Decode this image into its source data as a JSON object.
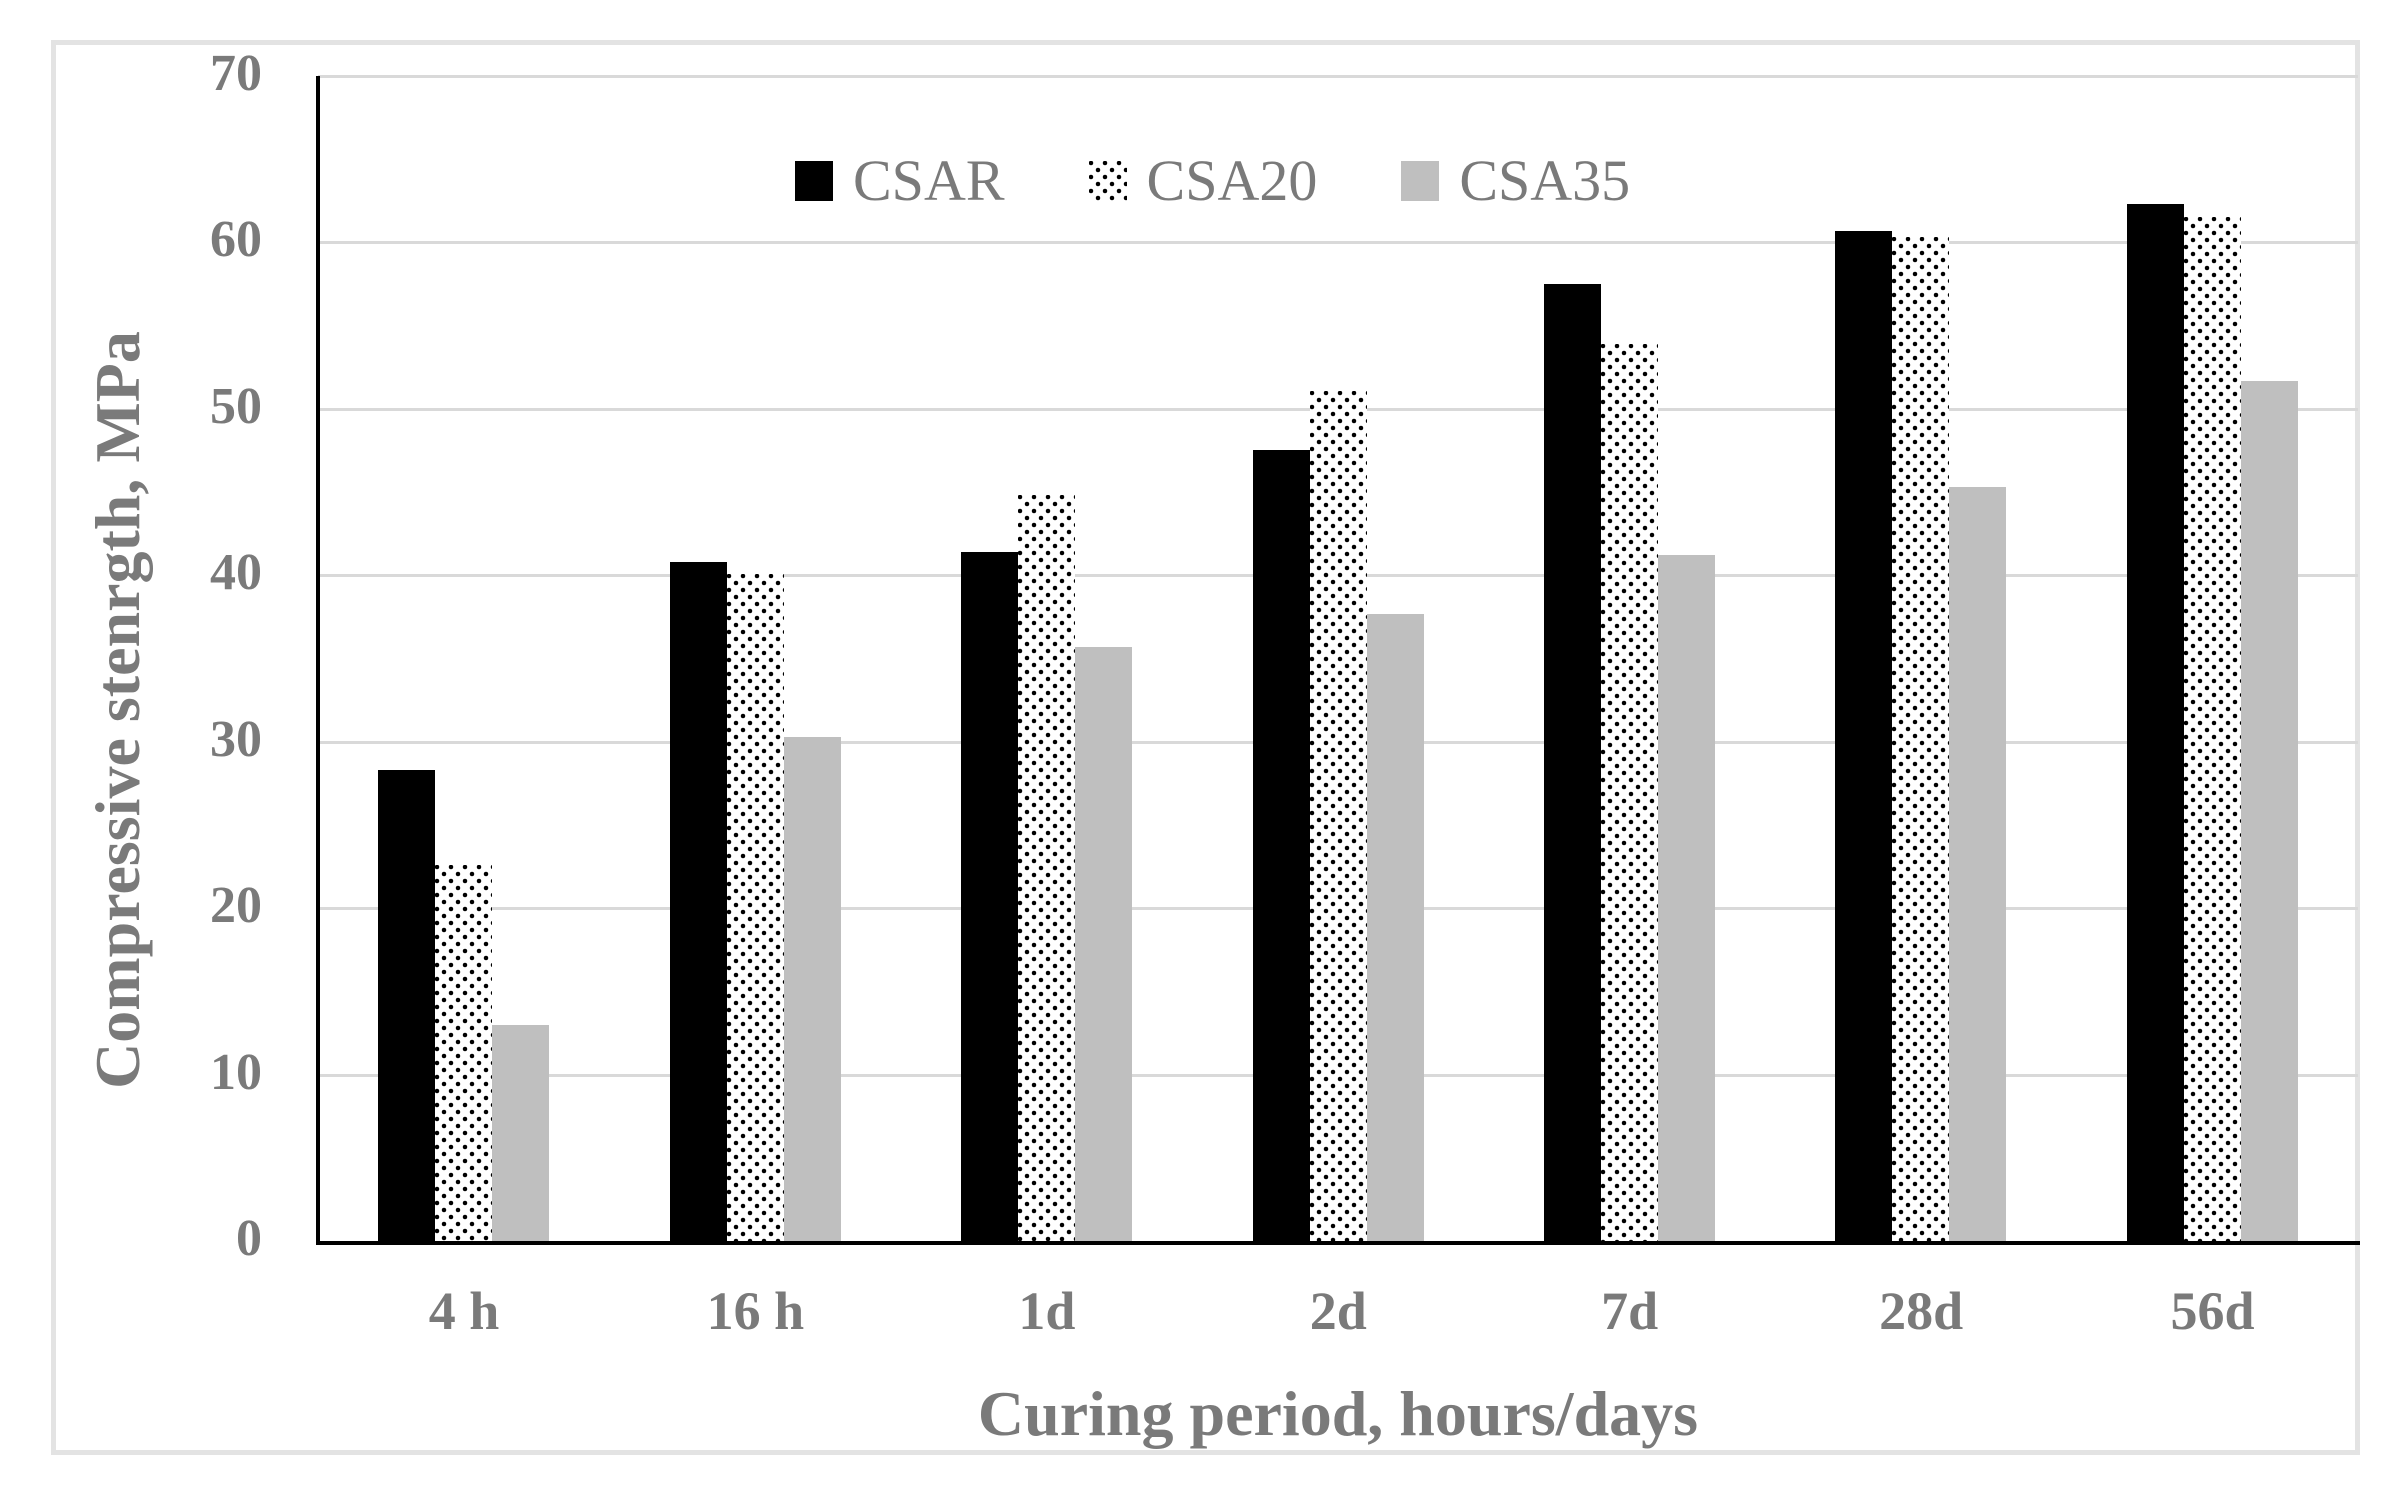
{
  "figure": {
    "background": "#ffffff",
    "frame_color": "#e3e3e3",
    "axis_color": "#000000",
    "gridline_color": "#d9d9d9",
    "text_color": "#7a7a7a"
  },
  "chart_data": {
    "type": "bar",
    "title": "",
    "xlabel": "Curing period, hours/days",
    "ylabel": "Compressive stenrgth, MPa",
    "categories": [
      "4 h",
      "16 h",
      "1d",
      "2d",
      "7d",
      "28d",
      "56d"
    ],
    "series": [
      {
        "name": "CSAR",
        "fill": "solid-black",
        "color": "#000000",
        "values": [
          28.3,
          40.8,
          41.4,
          47.5,
          57.5,
          60.7,
          62.3
        ]
      },
      {
        "name": "CSA20",
        "fill": "dot-pattern",
        "color": "#000000",
        "values": [
          22.6,
          40.1,
          44.8,
          51.1,
          53.9,
          60.3,
          61.5
        ]
      },
      {
        "name": "CSA35",
        "fill": "solid-gray",
        "color": "#bfbfbf",
        "values": [
          13.0,
          30.3,
          35.7,
          37.7,
          41.2,
          45.3,
          51.7
        ]
      }
    ],
    "ylim": [
      0,
      70
    ],
    "ytick_step": 10,
    "yticks": [
      0,
      10,
      20,
      30,
      40,
      50,
      60,
      70
    ],
    "grid": true,
    "legend_position": "top-center"
  }
}
